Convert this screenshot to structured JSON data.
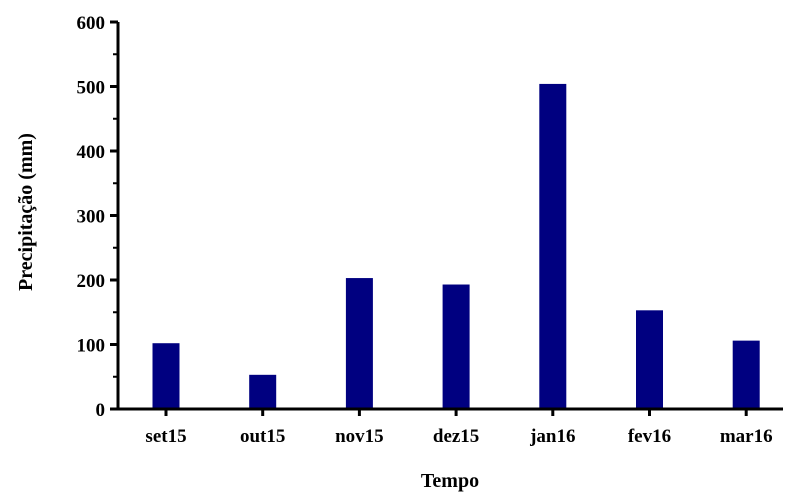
{
  "chart_data": {
    "type": "bar",
    "categories": [
      "set15",
      "out15",
      "nov15",
      "dez15",
      "jan16",
      "fev16",
      "mar16"
    ],
    "values": [
      102,
      53,
      203,
      193,
      504,
      153,
      106
    ],
    "xlabel": "Tempo",
    "ylabel": "Precipitação (mm)",
    "ylim": [
      0,
      600
    ],
    "yticks": [
      0,
      100,
      200,
      300,
      400,
      500,
      600
    ],
    "grid": false,
    "legend": "none",
    "bar_color": "#000080"
  }
}
